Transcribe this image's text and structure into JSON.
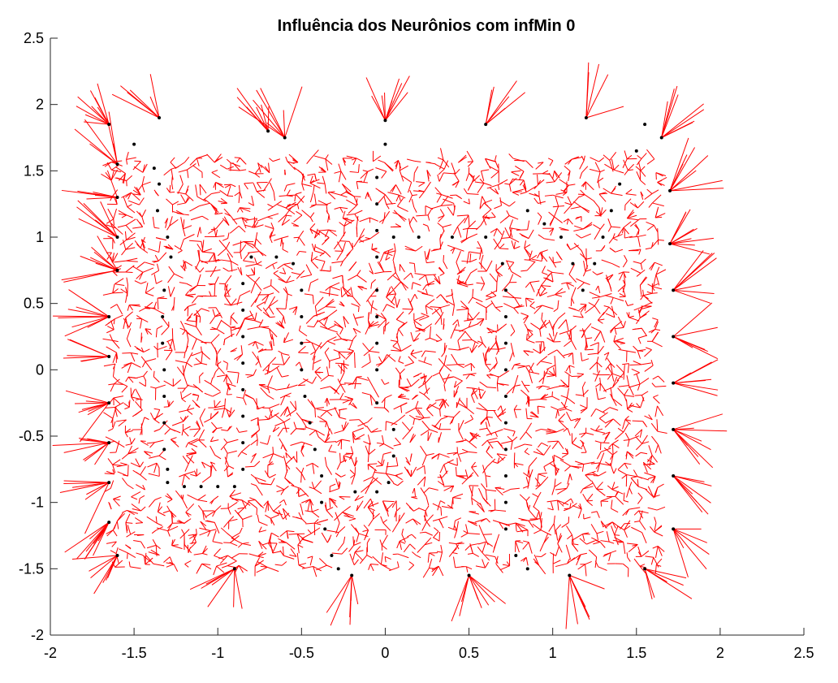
{
  "chart_data": {
    "type": "scatter",
    "title": "Influência dos Neurônios com infMin 0",
    "xlabel": "",
    "ylabel": "",
    "xlim": [
      -2,
      2.5
    ],
    "ylim": [
      -2,
      2.5
    ],
    "xticks": [
      -2,
      -1.5,
      -1,
      -0.5,
      0,
      0.5,
      1,
      1.5,
      2,
      2.5
    ],
    "yticks": [
      -2,
      -1.5,
      -1,
      -0.5,
      0,
      0.5,
      1,
      1.5,
      2,
      2.5
    ],
    "xtick_labels": [
      "-2",
      "-1.5",
      "-1",
      "-0.5",
      "0",
      "0.5",
      "1",
      "1.5",
      "2",
      "2.5"
    ],
    "ytick_labels": [
      "-2",
      "-1.5",
      "-1",
      "-0.5",
      "0",
      "0.5",
      "1",
      "1.5",
      "2",
      "2.5"
    ],
    "grid": false,
    "legend": "none",
    "colors": {
      "influence_lines": "#ff0000",
      "neurons": "#000000",
      "axes": "#262626"
    },
    "series": [
      {
        "role": "neuron-path",
        "points": [
          [
            -1.5,
            1.7
          ],
          [
            -1.38,
            1.52
          ],
          [
            -1.35,
            1.4
          ],
          [
            -1.36,
            1.2
          ],
          [
            -1.3,
            1.0
          ],
          [
            -1.28,
            0.85
          ],
          [
            -1.32,
            0.6
          ],
          [
            -1.33,
            0.4
          ],
          [
            -1.33,
            0.2
          ],
          [
            -1.32,
            0.0
          ],
          [
            -1.32,
            -0.2
          ],
          [
            -1.32,
            -0.4
          ],
          [
            -1.32,
            -0.6
          ],
          [
            -1.3,
            -0.75
          ],
          [
            -1.3,
            -0.85
          ],
          [
            -1.2,
            -0.88
          ],
          [
            -1.1,
            -0.88
          ],
          [
            -1.0,
            -0.88
          ],
          [
            -0.9,
            -0.88
          ],
          [
            -0.85,
            -0.75
          ],
          [
            -0.85,
            -0.55
          ],
          [
            -0.85,
            -0.35
          ],
          [
            -0.85,
            -0.15
          ],
          [
            -0.85,
            0.05
          ],
          [
            -0.85,
            0.25
          ],
          [
            -0.85,
            0.45
          ],
          [
            -0.85,
            0.65
          ],
          [
            -0.8,
            0.85
          ],
          [
            -0.65,
            0.85
          ],
          [
            -0.55,
            0.8
          ],
          [
            -0.5,
            0.6
          ],
          [
            -0.5,
            0.4
          ],
          [
            -0.5,
            0.2
          ],
          [
            -0.5,
            0.0
          ],
          [
            -0.48,
            -0.2
          ],
          [
            -0.45,
            -0.4
          ],
          [
            -0.42,
            -0.6
          ],
          [
            -0.38,
            -0.8
          ],
          [
            -0.38,
            -1.0
          ],
          [
            -0.36,
            -1.2
          ],
          [
            -0.32,
            -1.4
          ],
          [
            -0.28,
            -1.5
          ],
          [
            -0.18,
            -0.92
          ],
          [
            -0.05,
            -0.92
          ],
          [
            0.02,
            -0.85
          ],
          [
            0.05,
            -0.65
          ],
          [
            0.05,
            -0.45
          ],
          [
            -0.05,
            -0.25
          ],
          [
            -0.05,
            0.0
          ],
          [
            -0.05,
            0.2
          ],
          [
            -0.05,
            0.4
          ],
          [
            -0.05,
            0.6
          ],
          [
            -0.05,
            0.85
          ],
          [
            -0.05,
            1.05
          ],
          [
            -0.05,
            1.25
          ],
          [
            -0.05,
            1.45
          ],
          [
            0.0,
            1.7
          ],
          [
            0.05,
            1.0
          ],
          [
            0.2,
            1.0
          ],
          [
            0.4,
            1.0
          ],
          [
            0.6,
            1.0
          ],
          [
            0.7,
            0.8
          ],
          [
            0.72,
            0.6
          ],
          [
            0.72,
            0.4
          ],
          [
            0.72,
            0.2
          ],
          [
            0.72,
            0.0
          ],
          [
            0.72,
            -0.2
          ],
          [
            0.72,
            -0.4
          ],
          [
            0.72,
            -0.6
          ],
          [
            0.72,
            -0.8
          ],
          [
            0.72,
            -1.0
          ],
          [
            0.72,
            -1.2
          ],
          [
            0.78,
            -1.4
          ],
          [
            0.85,
            -1.5
          ],
          [
            0.85,
            1.2
          ],
          [
            0.95,
            1.1
          ],
          [
            1.05,
            1.0
          ],
          [
            1.12,
            0.8
          ],
          [
            1.18,
            0.6
          ],
          [
            1.25,
            0.8
          ],
          [
            1.3,
            1.0
          ],
          [
            1.35,
            1.2
          ],
          [
            1.4,
            1.4
          ],
          [
            1.5,
            1.65
          ],
          [
            1.55,
            1.85
          ]
        ]
      },
      {
        "role": "edge-neurons",
        "points": [
          [
            -1.65,
            1.85
          ],
          [
            -1.6,
            1.55
          ],
          [
            -1.6,
            1.3
          ],
          [
            -1.6,
            1.0
          ],
          [
            -1.6,
            0.75
          ],
          [
            -1.65,
            0.4
          ],
          [
            -1.65,
            0.1
          ],
          [
            -1.65,
            -0.25
          ],
          [
            -1.65,
            -0.55
          ],
          [
            -1.65,
            -0.85
          ],
          [
            -1.65,
            -1.15
          ],
          [
            -1.6,
            -1.4
          ],
          [
            -1.35,
            1.9
          ],
          [
            -0.7,
            1.8
          ],
          [
            -0.6,
            1.75
          ],
          [
            0.0,
            1.88
          ],
          [
            0.6,
            1.85
          ],
          [
            1.2,
            1.9
          ],
          [
            1.65,
            1.75
          ],
          [
            1.7,
            1.35
          ],
          [
            1.7,
            0.95
          ],
          [
            1.72,
            0.6
          ],
          [
            1.72,
            0.25
          ],
          [
            1.72,
            -0.1
          ],
          [
            1.72,
            -0.45
          ],
          [
            1.72,
            -0.8
          ],
          [
            1.72,
            -1.2
          ],
          [
            1.55,
            -1.5
          ],
          [
            1.1,
            -1.55
          ],
          [
            0.5,
            -1.55
          ],
          [
            -0.2,
            -1.55
          ],
          [
            -0.9,
            -1.5
          ]
        ]
      }
    ]
  }
}
